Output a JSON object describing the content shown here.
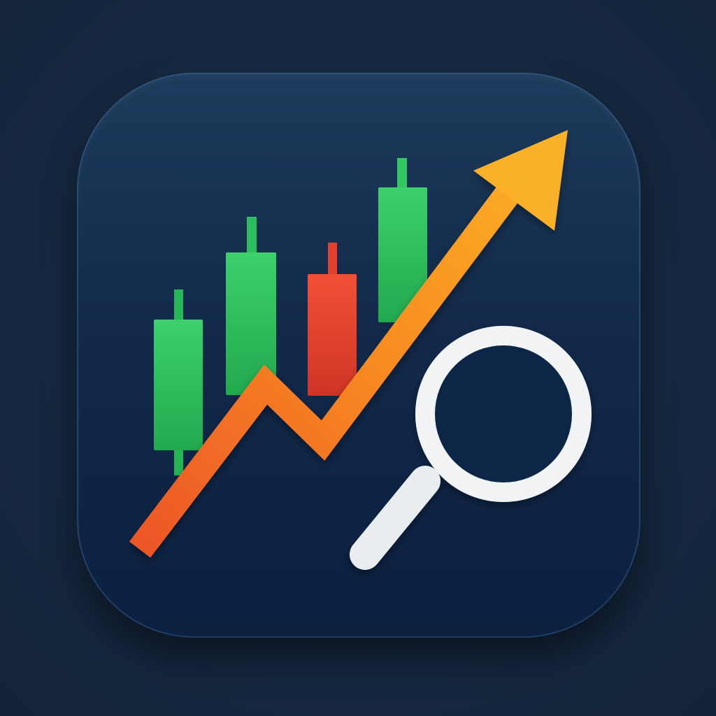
{
  "app": {
    "icon_name": "trading-analysis-app-icon"
  },
  "colors": {
    "background": "#172a40",
    "tile_top": "#1d3b5c",
    "tile_bottom": "#0c2040",
    "bull_candle": "#2fc25f",
    "bear_candle": "#e8452f",
    "trend_arrow_start": "#ee5a2a",
    "trend_arrow_end": "#fbb124",
    "magnifier": "#eef1f3"
  },
  "icons": {
    "candles": "candlestick-chart-icon",
    "arrow": "trend-arrow-icon",
    "magnifier": "magnifying-glass-icon"
  }
}
